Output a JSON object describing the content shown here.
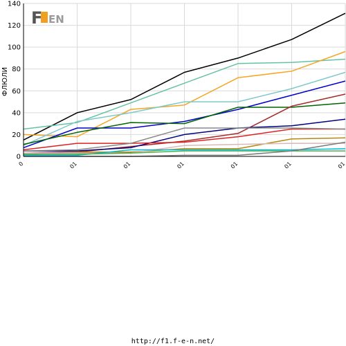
{
  "chart_data": {
    "type": "line",
    "title": "",
    "xlabel": "",
    "ylabel": "ФЛЮЛИ",
    "ylim": [
      0,
      140
    ],
    "yticks": [
      0,
      20,
      40,
      60,
      80,
      100,
      120,
      140
    ],
    "x_tick_labels": [
      "0",
      "01",
      "01",
      "01",
      "01",
      "01",
      "01"
    ],
    "grid": true,
    "legend": "none",
    "series": [
      {
        "color": "#000000",
        "values": [
          15,
          40,
          52,
          77,
          90,
          107,
          131
        ]
      },
      {
        "color": "#66c2a5",
        "values": [
          25,
          31,
          49,
          67,
          85,
          86,
          89
        ]
      },
      {
        "color": "#f5a623",
        "values": [
          20,
          18,
          43,
          47,
          72,
          78,
          96
        ]
      },
      {
        "color": "#7ec8c8",
        "values": [
          10,
          32,
          40,
          50,
          50,
          62,
          77
        ]
      },
      {
        "color": "#0000cc",
        "values": [
          8,
          26,
          26,
          32,
          43,
          56,
          69
        ]
      },
      {
        "color": "#006400",
        "values": [
          11,
          22,
          31,
          30,
          45,
          45,
          49
        ]
      },
      {
        "color": "#a52a2a",
        "values": [
          3,
          4,
          9,
          14,
          21,
          46,
          57
        ]
      },
      {
        "color": "#000080",
        "values": [
          5,
          5,
          8,
          20,
          26,
          28,
          34
        ]
      },
      {
        "color": "#dd2222",
        "values": [
          6,
          12,
          12,
          13,
          18,
          25,
          25
        ]
      },
      {
        "color": "#888888",
        "values": [
          5,
          6,
          12,
          26,
          26,
          26,
          25
        ]
      },
      {
        "color": "#b8860b",
        "values": [
          1,
          4,
          4,
          7,
          7,
          16,
          17
        ]
      },
      {
        "color": "#d8b8b8",
        "values": [
          3,
          3,
          3,
          10,
          11,
          12,
          12
        ]
      },
      {
        "color": "#00bcd4",
        "values": [
          1,
          1,
          6,
          6,
          6,
          6,
          7
        ]
      },
      {
        "color": "#4caf50",
        "values": [
          2,
          2,
          3,
          5,
          5,
          5,
          5
        ]
      },
      {
        "color": "#7a7a7a",
        "values": [
          0,
          0,
          0,
          1,
          1,
          5,
          13
        ]
      }
    ]
  },
  "logo": {
    "text_main": "F",
    "text_rest": "EN"
  },
  "footer": {
    "url": "http://f1.f-e-n.net/"
  }
}
